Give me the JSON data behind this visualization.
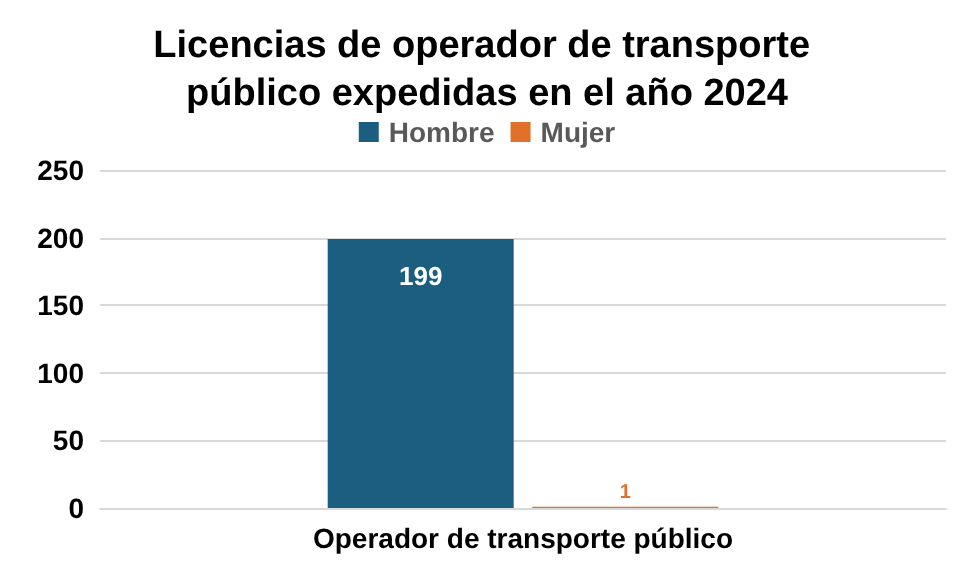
{
  "chart_data": {
    "type": "bar",
    "title": "Licencias de operador de transporte público expedidas en el año 2024",
    "categories": [
      "Operador de transporte público"
    ],
    "series": [
      {
        "name": "Hombre",
        "color": "#1b5e80",
        "values": [
          199
        ]
      },
      {
        "name": "Mujer",
        "color": "#e0702a",
        "values": [
          1
        ]
      }
    ],
    "ylim": [
      0,
      250
    ],
    "yticks": [
      0,
      50,
      100,
      150,
      200,
      250
    ],
    "grid": "y",
    "legend": "top",
    "data_labels": true
  }
}
